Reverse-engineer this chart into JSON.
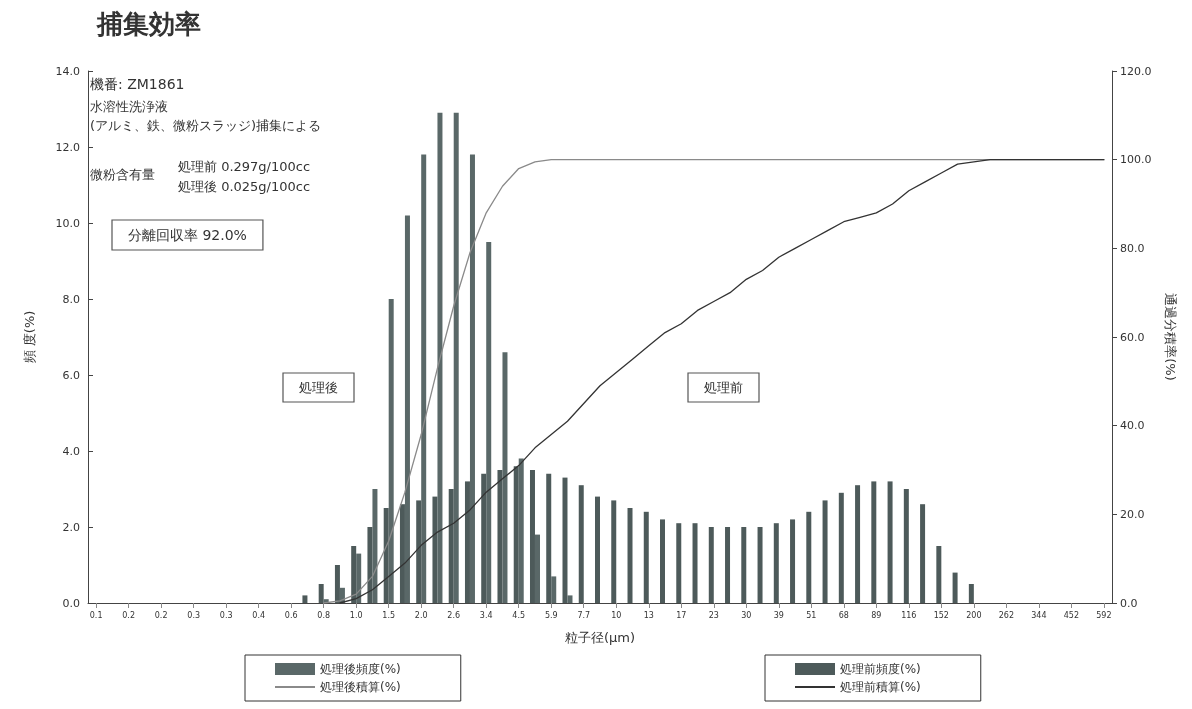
{
  "chart_data": {
    "type": "bar",
    "title": "捕集効率",
    "xlabel": "粒子径(μm)",
    "ylabel": "頻 度(%)",
    "y2label": "通過分積率(%)",
    "categories": [
      "0.1",
      null,
      "0.2",
      null,
      "0.2",
      null,
      "0.3",
      null,
      "0.3",
      null,
      "0.4",
      null,
      "0.6",
      null,
      "0.8",
      null,
      "1.0",
      null,
      "1.5",
      null,
      "2.0",
      null,
      "2.6",
      null,
      "3.4",
      null,
      "4.5",
      null,
      "5.9",
      null,
      "7.7",
      null,
      "10",
      null,
      "13",
      null,
      "17",
      null,
      "23",
      null,
      "30",
      null,
      "39",
      null,
      "51",
      null,
      "68",
      null,
      "89",
      null,
      "116",
      null,
      "152",
      null,
      "200",
      null,
      "262",
      null,
      "344",
      null,
      "452",
      null,
      "592"
    ],
    "series": [
      {
        "name": "処理前頻度(%)",
        "type": "bar",
        "color": "#4d5a5a",
        "values": [
          0,
          0,
          0,
          0,
          0,
          0,
          0,
          0,
          0,
          0,
          0,
          0,
          0,
          0.2,
          0.5,
          1.0,
          1.5,
          2.0,
          2.5,
          2.6,
          2.7,
          2.8,
          3.0,
          3.2,
          3.4,
          3.5,
          3.6,
          3.5,
          3.4,
          3.3,
          3.1,
          2.8,
          2.7,
          2.5,
          2.4,
          2.2,
          2.1,
          2.1,
          2.0,
          2.0,
          2.0,
          2.0,
          2.1,
          2.2,
          2.4,
          2.7,
          2.9,
          3.1,
          3.2,
          3.2,
          3.0,
          2.6,
          1.5,
          0.8,
          0.5,
          0,
          0,
          0,
          0,
          0,
          0,
          0,
          0
        ]
      },
      {
        "name": "処理後頻度(%)",
        "type": "bar",
        "color": "#5a6868",
        "values": [
          0,
          0,
          0,
          0,
          0,
          0,
          0,
          0,
          0,
          0,
          0,
          0,
          0,
          0,
          0.1,
          0.4,
          1.3,
          3.0,
          8.0,
          10.2,
          11.8,
          12.9,
          12.9,
          11.8,
          9.5,
          6.6,
          3.8,
          1.8,
          0.7,
          0.2,
          0,
          0,
          0,
          0,
          0,
          0,
          0,
          0,
          0,
          0,
          0,
          0,
          0,
          0,
          0,
          0,
          0,
          0,
          0,
          0,
          0,
          0,
          0,
          0,
          0,
          0,
          0,
          0,
          0,
          0,
          0,
          0,
          0
        ]
      },
      {
        "name": "処理後積算(%)",
        "type": "line",
        "axis": "y2",
        "color": "#8a8a8a",
        "values": [
          null,
          null,
          null,
          null,
          null,
          null,
          null,
          null,
          null,
          null,
          null,
          null,
          null,
          null,
          0,
          0.5,
          2,
          6,
          14,
          25,
          38,
          53,
          67,
          79,
          88,
          94,
          98,
          99.5,
          100,
          100,
          100,
          100,
          100,
          100,
          100,
          100,
          100,
          100,
          100,
          100,
          100,
          100,
          100,
          100,
          100,
          100,
          100,
          100,
          100,
          100,
          100,
          100,
          100,
          100,
          100,
          100,
          100,
          100,
          100,
          100,
          100,
          100,
          100
        ]
      },
      {
        "name": "処理前積算(%)",
        "type": "line",
        "axis": "y2",
        "color": "#333333",
        "values": [
          null,
          null,
          null,
          null,
          null,
          null,
          null,
          null,
          null,
          null,
          null,
          null,
          null,
          null,
          null,
          0,
          1,
          3,
          6,
          9,
          13,
          16,
          18,
          21,
          25,
          28,
          31,
          35,
          38,
          41,
          45,
          49,
          52,
          55,
          58,
          61,
          63,
          66,
          68,
          70,
          73,
          75,
          78,
          80,
          82,
          84,
          86,
          87,
          88,
          90,
          93,
          95,
          97,
          99,
          99.5,
          100,
          100,
          100,
          100,
          100,
          100,
          100,
          100
        ]
      }
    ],
    "ylim": [
      0,
      14
    ],
    "yticks": [
      {
        "value": 0,
        "label": "0.0"
      },
      {
        "value": 2,
        "label": "2.0"
      },
      {
        "value": 4,
        "label": "4.0"
      },
      {
        "value": 6,
        "label": "6.0"
      },
      {
        "value": 8,
        "label": "8.0"
      },
      {
        "value": 10,
        "label": "10.0"
      },
      {
        "value": 12,
        "label": "12.0"
      },
      {
        "value": 14,
        "label": "14.0"
      }
    ],
    "y2lim": [
      0,
      120
    ],
    "y2ticks": [
      {
        "value": 0,
        "label": "0.0"
      },
      {
        "value": 20,
        "label": "20.0"
      },
      {
        "value": 40,
        "label": "40.0"
      },
      {
        "value": 60,
        "label": "60.0"
      },
      {
        "value": 80,
        "label": "80.0"
      },
      {
        "value": 100,
        "label": "100.0"
      },
      {
        "value": 120,
        "label": "120.0"
      }
    ],
    "annotations": [
      "機番: ZM1861",
      "水溶性洗浄液",
      "(アルミ、鉄、微粉スラッジ)捕集による",
      "微粉含有量",
      "処理前 0.297g/100cc",
      "処理後 0.025g/100cc",
      "分離回収率 92.0%",
      "処理後",
      "処理前"
    ],
    "grid": false,
    "legend": "bottom",
    "marker": "none",
    "line_style": "solid"
  }
}
